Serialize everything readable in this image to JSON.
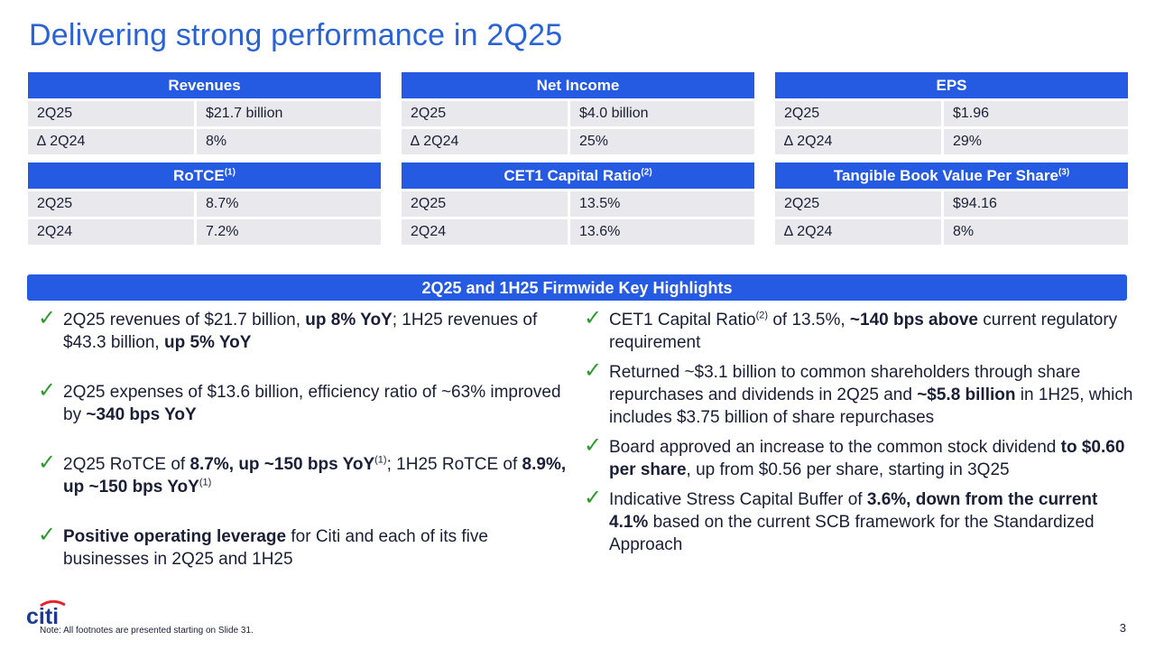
{
  "title": "Delivering strong performance in 2Q25",
  "metrics": {
    "revenues": {
      "header": "Revenues",
      "sup": "",
      "rows": [
        [
          "2Q25",
          "$21.7 billion"
        ],
        [
          "∆ 2Q24",
          "8%"
        ]
      ]
    },
    "net_income": {
      "header": "Net Income",
      "sup": "",
      "rows": [
        [
          "2Q25",
          "$4.0 billion"
        ],
        [
          "∆ 2Q24",
          "25%"
        ]
      ]
    },
    "eps": {
      "header": "EPS",
      "sup": "",
      "rows": [
        [
          "2Q25",
          "$1.96"
        ],
        [
          "∆ 2Q24",
          "29%"
        ]
      ]
    },
    "rotce": {
      "header": "RoTCE",
      "sup": "(1)",
      "rows": [
        [
          "2Q25",
          "8.7%"
        ],
        [
          "2Q24",
          "7.2%"
        ]
      ]
    },
    "cet1": {
      "header": "CET1 Capital Ratio",
      "sup": "(2)",
      "rows": [
        [
          "2Q25",
          "13.5%"
        ],
        [
          "2Q24",
          "13.6%"
        ]
      ]
    },
    "tbvps": {
      "header": "Tangible Book Value Per Share",
      "sup": "(3)",
      "rows": [
        [
          "2Q25",
          "$94.16"
        ],
        [
          "∆ 2Q24",
          "8%"
        ]
      ]
    }
  },
  "highlights": {
    "header": "2Q25 and 1H25 Firmwide Key Highlights",
    "left": [
      [
        {
          "t": "2Q25 revenues of $21.7 billion, "
        },
        {
          "t": "up 8% YoY",
          "b": true
        },
        {
          "t": "; 1H25 revenues of $43.3 billion, "
        },
        {
          "t": "up 5% YoY",
          "b": true
        }
      ],
      [
        {
          "t": "2Q25 expenses of $13.6 billion, efficiency ratio of ~63% improved by "
        },
        {
          "t": "~340 bps YoY",
          "b": true
        }
      ],
      [
        {
          "t": "2Q25 RoTCE of "
        },
        {
          "t": "8.7%, up ~150 bps YoY",
          "b": true
        },
        {
          "t": "(1)",
          "s": true
        },
        {
          "t": "; 1H25 RoTCE of "
        },
        {
          "t": "8.9%, up ~150 bps YoY",
          "b": true
        },
        {
          "t": "(1)",
          "s": true
        }
      ],
      [
        {
          "t": "Positive operating leverage",
          "b": true
        },
        {
          "t": " for Citi and each of its five businesses in 2Q25 and 1H25"
        }
      ]
    ],
    "right": [
      [
        {
          "t": "CET1 Capital Ratio"
        },
        {
          "t": "(2)",
          "s": true
        },
        {
          "t": " of 13.5%, "
        },
        {
          "t": "~140 bps above",
          "b": true
        },
        {
          "t": " current regulatory requirement"
        }
      ],
      [
        {
          "t": "Returned ~$3.1 billion to common shareholders through share repurchases and dividends in 2Q25 and "
        },
        {
          "t": "~$5.8 billion",
          "b": true
        },
        {
          "t": " in 1H25, which includes $3.75 billion of share repurchases"
        }
      ],
      [
        {
          "t": "Board approved an increase to the common stock dividend "
        },
        {
          "t": "to $0.60 per share",
          "b": true
        },
        {
          "t": ", up from $0.56 per share, starting in 3Q25"
        }
      ],
      [
        {
          "t": "Indicative Stress Capital Buffer of "
        },
        {
          "t": "3.6%, down from the current 4.1%",
          "b": true
        },
        {
          "t": " based on the current SCB framework for the Standardized Approach"
        }
      ]
    ]
  },
  "logo": {
    "text": "citi",
    "arc_color": "#e8212b",
    "text_color": "#1d3a8f"
  },
  "footer": {
    "note": "Note:  All footnotes are presented starting on Slide 31.",
    "page": "3"
  },
  "colors": {
    "accent": "#255be3",
    "title": "#2a63d6",
    "row_bg": "#e9e9ed",
    "check": "#2c9b2c"
  }
}
